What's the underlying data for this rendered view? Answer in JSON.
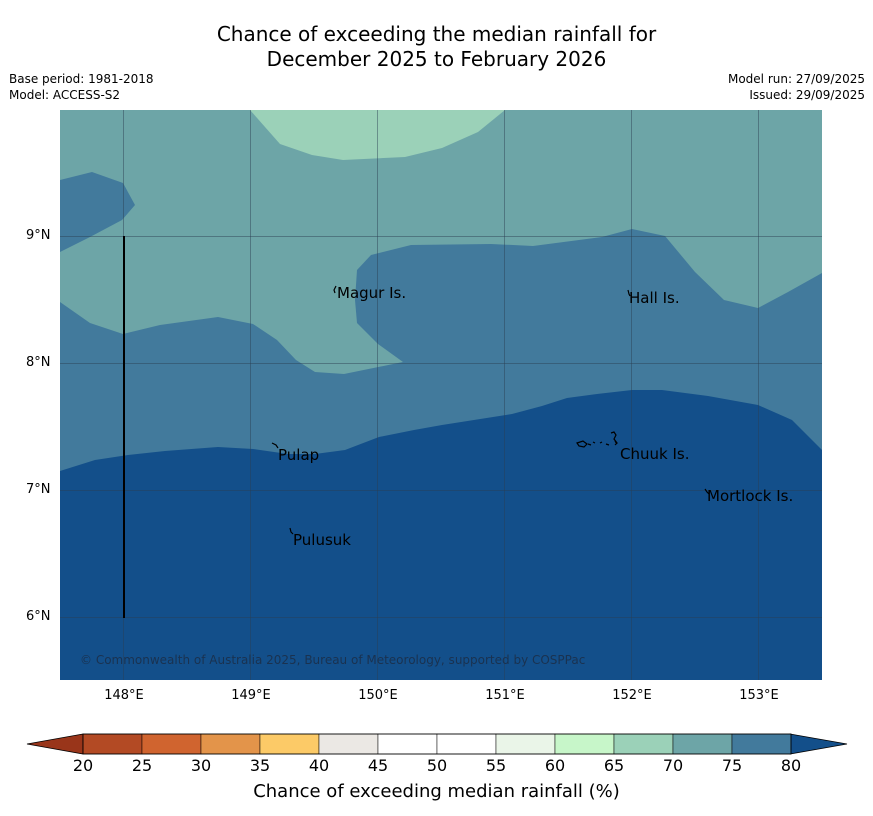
{
  "title": {
    "line1": "Chance of exceeding the median rainfall for",
    "line2": "December 2025 to February 2026"
  },
  "meta": {
    "base_period": "Base period: 1981-2018",
    "model": "Model: ACCESS-S2",
    "model_run": "Model run: 27/09/2025",
    "issued": "Issued: 29/09/2025"
  },
  "axes": {
    "latitudes": [
      "9°N",
      "8°N",
      "7°N",
      "6°N"
    ],
    "longitudes": [
      "148°E",
      "149°E",
      "150°E",
      "151°E",
      "152°E",
      "153°E"
    ]
  },
  "places": {
    "magur": "Magur Is.",
    "hall": "Hall Is.",
    "pulap": "Pulap",
    "chuuk": "Chuuk Is.",
    "mortlock": "Mortlock Is.",
    "pulusuk": "Pulusuk"
  },
  "copyright": "© Commonwealth of Australia 2025, Bureau of Meteorology, supported by COSPPac",
  "colorbar": {
    "title": "Chance of exceeding median rainfall (%)",
    "ticks": [
      "20",
      "25",
      "30",
      "35",
      "40",
      "45",
      "50",
      "55",
      "60",
      "65",
      "70",
      "75",
      "80"
    ],
    "colors": [
      "#b34a24",
      "#d0642f",
      "#e3944a",
      "#fcca67",
      "#ebe8e4",
      "#ffffff",
      "#ffffff",
      "#eaf5e8",
      "#c7f6c9",
      "#9bd1b8",
      "#6da5a7",
      "#427a9c"
    ],
    "under_color": "#99351a",
    "over_color": "#134f8a"
  },
  "zone_colors": {
    "p65_70": "#9bd1b8",
    "p70_75": "#6da5a7",
    "p75_80": "#427a9c",
    "p80_plus": "#134f8a"
  }
}
